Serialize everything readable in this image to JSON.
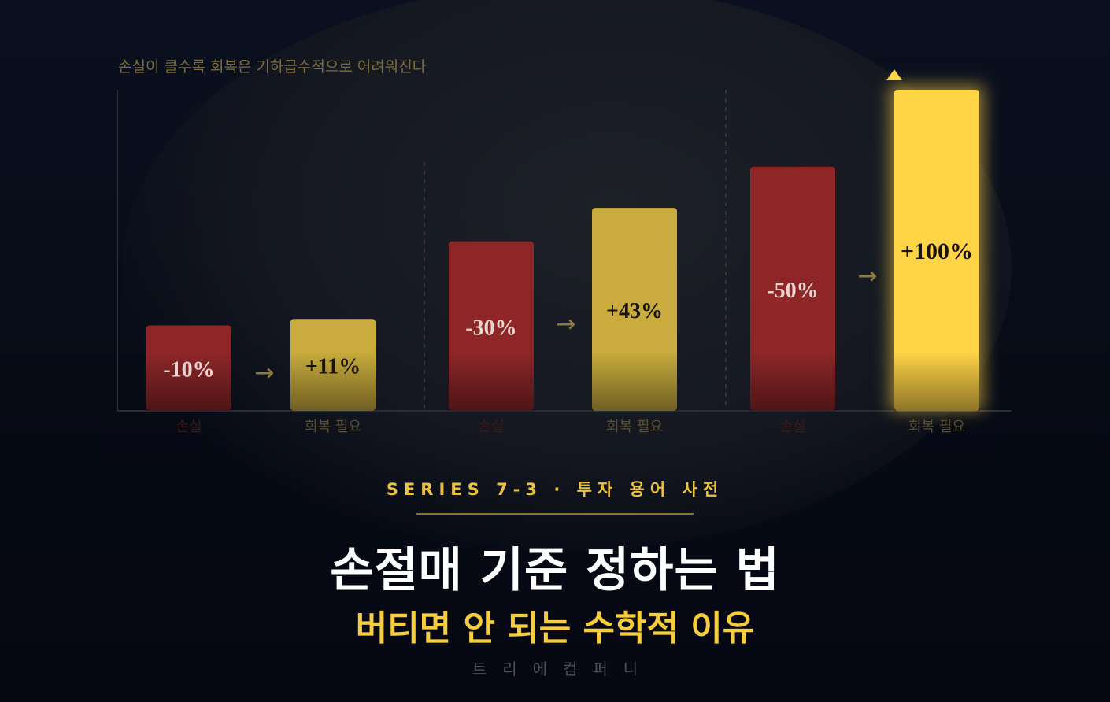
{
  "chart_data": {
    "type": "bar",
    "title": "손실이 클수록 회복은 기하급수적으로 어려워진다",
    "groups": [
      {
        "loss": {
          "value": -10,
          "label": "-10%",
          "category": "손실"
        },
        "recovery": {
          "value": 11,
          "label": "+11%",
          "category": "회복 필요"
        },
        "arrow": "→"
      },
      {
        "loss": {
          "value": -30,
          "label": "-30%",
          "category": "손실"
        },
        "recovery": {
          "value": 43,
          "label": "+43%",
          "category": "회복 필요"
        },
        "arrow": "→"
      },
      {
        "loss": {
          "value": -50,
          "label": "-50%",
          "category": "손실"
        },
        "recovery": {
          "value": 100,
          "label": "+100%",
          "category": "회복 필요"
        },
        "arrow": "→",
        "highlight": true
      }
    ],
    "colors": {
      "loss": "#8e2628",
      "recovery": "#c9ac3d",
      "highlight": "#ffd447"
    }
  },
  "series_label": "SERIES 7-3 · 투자 용어 사전",
  "main_title": "손절매 기준 정하는 법",
  "sub_title": "버티면 안 되는 수학적 이유",
  "company": "트리에컴퍼니"
}
